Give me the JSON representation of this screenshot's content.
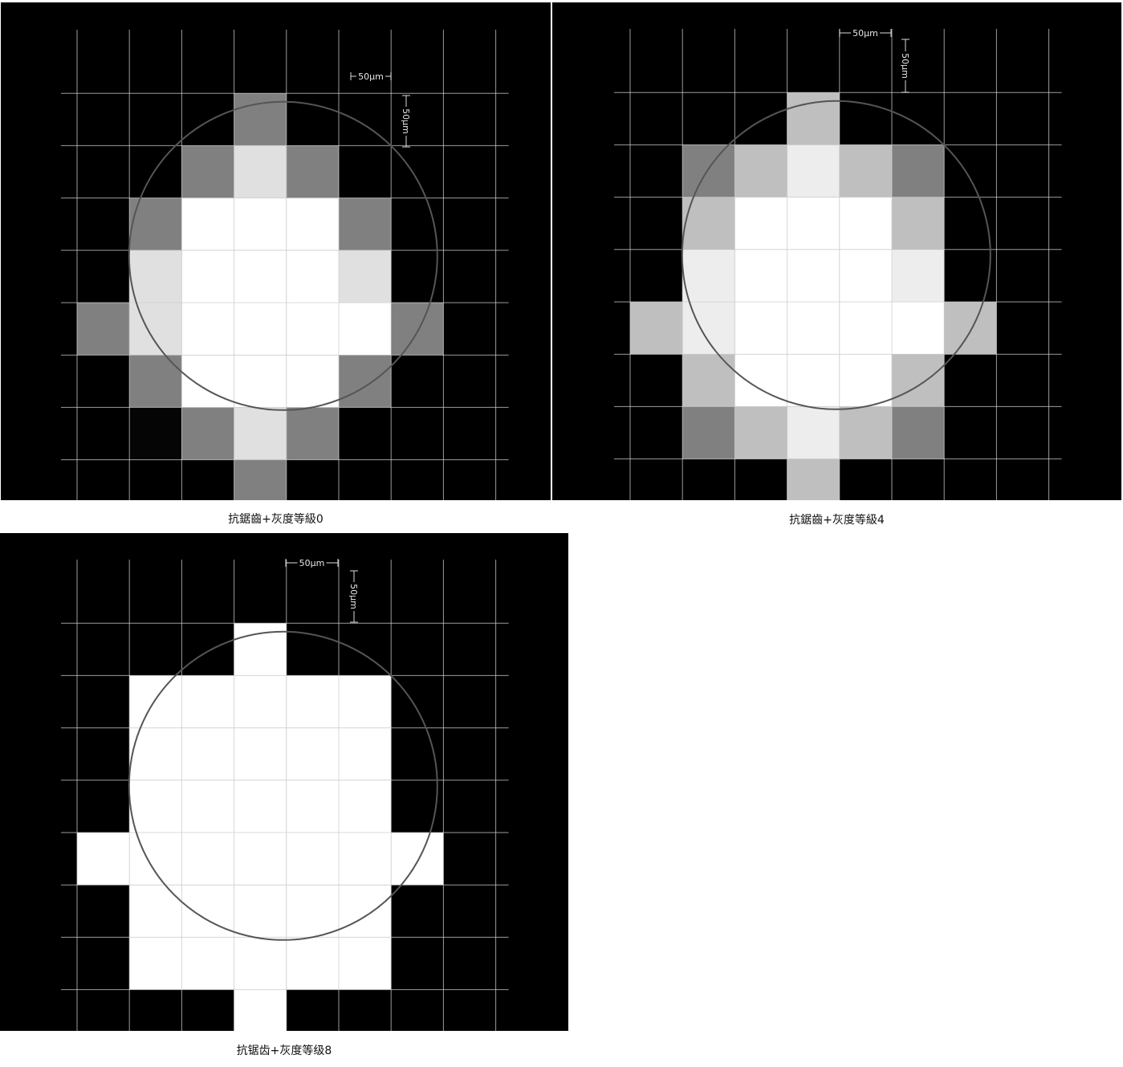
{
  "panels": [
    {
      "caption": "抗鋸齒+灰度等級0",
      "scale_h": "50μm",
      "scale_v": "50μm",
      "cells": [
        [
          0,
          0,
          0,
          0,
          0,
          0,
          0,
          0
        ],
        [
          0,
          0,
          0,
          0.5,
          0,
          0,
          0,
          0
        ],
        [
          0,
          0,
          0.5,
          0.88,
          0.5,
          0,
          0,
          0
        ],
        [
          0,
          0.5,
          1,
          1,
          1,
          0.5,
          0,
          0
        ],
        [
          0,
          0.88,
          1,
          1,
          1,
          0.88,
          0,
          0
        ],
        [
          0.5,
          0.88,
          1,
          1,
          1,
          1,
          0.5,
          0
        ],
        [
          0,
          0.5,
          1,
          1,
          1,
          0.5,
          0,
          0
        ],
        [
          0,
          0.02,
          0.5,
          0.88,
          0.5,
          0,
          0,
          0
        ],
        [
          0,
          0,
          0,
          0.5,
          0,
          0,
          0,
          0
        ]
      ]
    },
    {
      "caption": "抗鋸齒+灰度等級4",
      "scale_h": "50μm",
      "scale_v": "50μm",
      "cells": [
        [
          0,
          0,
          0,
          0,
          0,
          0,
          0,
          0
        ],
        [
          0,
          0,
          0,
          0.75,
          0,
          0,
          0,
          0
        ],
        [
          0,
          0.5,
          0.75,
          0.93,
          0.75,
          0.5,
          0,
          0
        ],
        [
          0,
          0.75,
          1,
          1,
          1,
          0.75,
          0,
          0
        ],
        [
          0,
          0.93,
          1,
          1,
          1,
          0.93,
          0,
          0
        ],
        [
          0.75,
          0.93,
          1,
          1,
          1,
          1,
          0.75,
          0
        ],
        [
          0,
          0.75,
          1,
          1,
          1,
          0.75,
          0,
          0
        ],
        [
          0,
          0.5,
          0.75,
          0.93,
          0.75,
          0.5,
          0,
          0
        ],
        [
          0,
          0,
          0,
          0.75,
          0,
          0,
          0,
          0
        ]
      ]
    },
    {
      "caption": "抗锯齿+灰度等级8",
      "scale_h": "50μm",
      "scale_v": "50μm",
      "cells": [
        [
          0,
          0,
          0,
          0,
          0,
          0,
          0,
          0
        ],
        [
          0,
          0,
          0,
          1,
          0,
          0,
          0,
          0
        ],
        [
          0,
          1,
          1,
          1,
          1,
          1,
          0,
          0
        ],
        [
          0,
          1,
          1,
          1,
          1,
          1,
          0,
          0
        ],
        [
          0,
          1,
          1,
          1,
          1,
          1,
          0,
          0
        ],
        [
          1,
          1,
          1,
          1,
          1,
          1,
          1,
          0
        ],
        [
          0,
          1,
          1,
          1,
          1,
          1,
          0,
          0
        ],
        [
          0,
          1,
          1,
          1,
          1,
          1,
          0,
          0
        ],
        [
          0,
          0,
          0,
          1,
          0,
          0,
          0,
          0
        ]
      ]
    }
  ],
  "colors": {
    "background": "#000000",
    "grid": "#cfcfcf",
    "circle": "#555555",
    "page": "#ffffff"
  }
}
